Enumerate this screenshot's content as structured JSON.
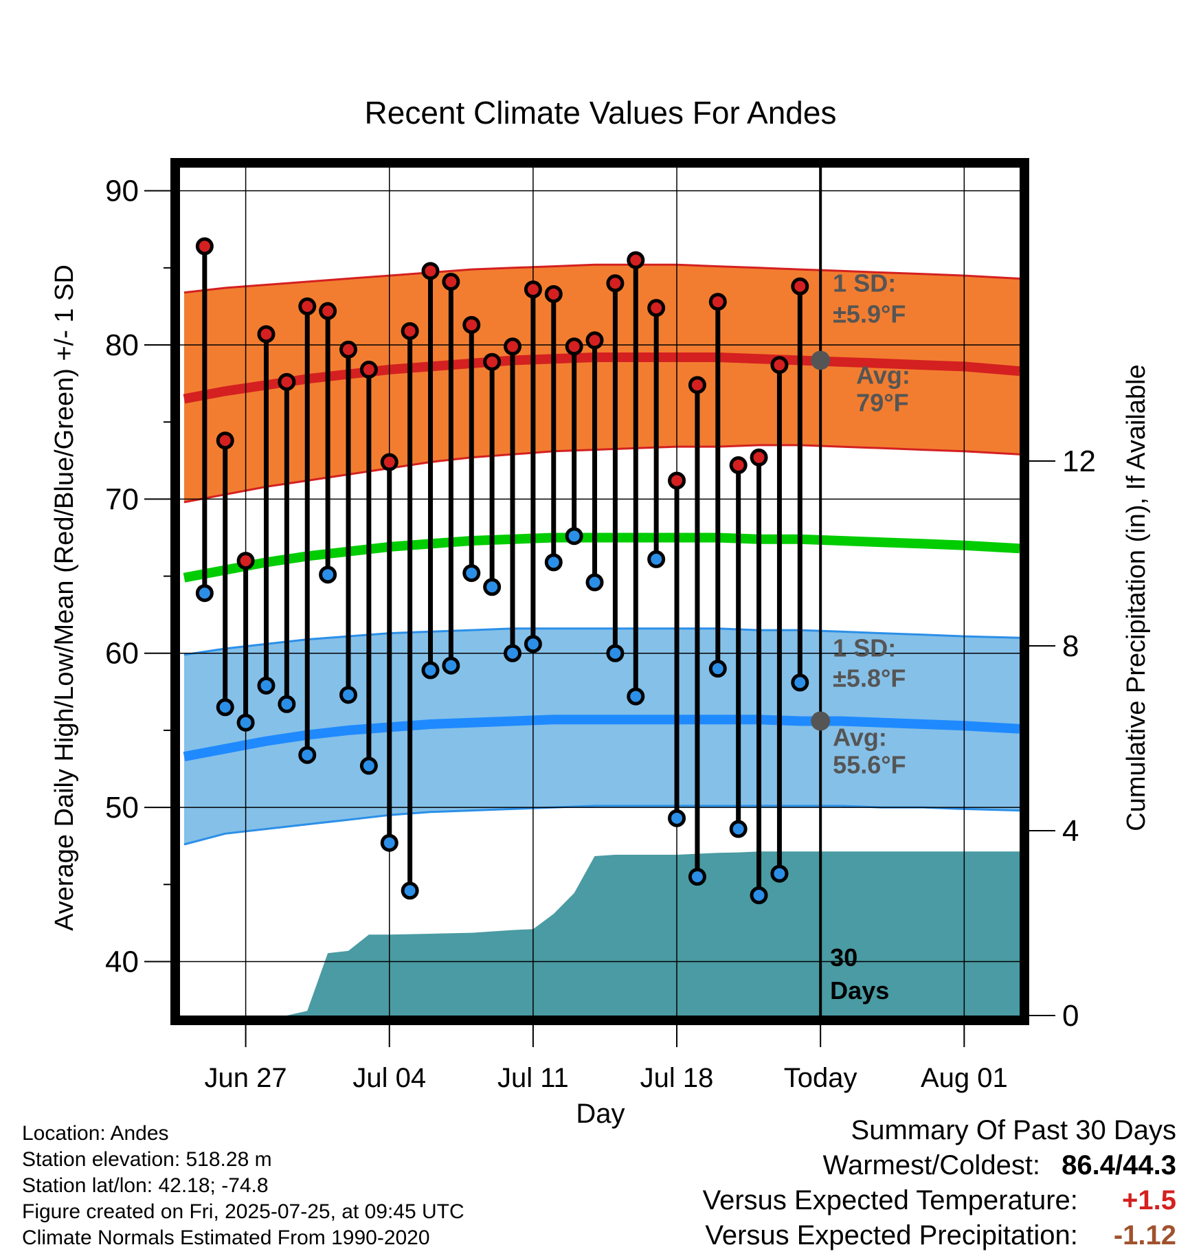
{
  "chart_data": {
    "type": "line",
    "title": "Recent Climate Values For Andes",
    "xlabel": "Day",
    "ylabel": "Average Daily High/Low/Mean (Red/Blue/Green) +/- 1 SD",
    "y2label": "Cumulative Precipitation (in), If Available",
    "ylim": [
      36.5,
      91.5
    ],
    "y_ticks": [
      40,
      50,
      60,
      70,
      80,
      90
    ],
    "y2lim": [
      0,
      18.35
    ],
    "y2_ticks": [
      0,
      4,
      8,
      12
    ],
    "x_tick_labels": [
      "Jun 27",
      "Jul 04",
      "Jul 11",
      "Jul 18",
      "Today",
      "Aug 01"
    ],
    "x_range_days": [
      -31.2,
      9.7
    ],
    "x_tick_days": [
      -28,
      -21,
      -14,
      -7,
      0,
      7
    ],
    "grid": true,
    "x_days": [
      -30,
      -29,
      -28,
      -27,
      -26,
      -25,
      -24,
      -23,
      -22,
      -21,
      -20,
      -19,
      -18,
      -17,
      -16,
      -15,
      -14,
      -13,
      -12,
      -11,
      -10,
      -9,
      -8,
      -7,
      -6,
      -5,
      -4,
      -3,
      -2,
      -1
    ],
    "series": [
      {
        "name": "Daily High",
        "color": "#d42020",
        "values": [
          86.4,
          73.8,
          66.0,
          80.7,
          77.6,
          82.5,
          82.2,
          79.7,
          78.4,
          72.4,
          80.9,
          84.8,
          84.1,
          81.3,
          78.9,
          79.9,
          83.6,
          83.3,
          79.9,
          80.3,
          84.0,
          85.5,
          82.4,
          71.2,
          77.4,
          82.8,
          72.2,
          72.7,
          78.7,
          83.8
        ]
      },
      {
        "name": "Daily Low",
        "color": "#2b8fe8",
        "values": [
          63.9,
          56.5,
          55.5,
          57.9,
          56.7,
          53.4,
          65.1,
          57.3,
          52.7,
          47.7,
          44.6,
          58.9,
          59.2,
          65.2,
          64.3,
          60.0,
          60.6,
          65.9,
          67.6,
          64.6,
          60.0,
          57.2,
          66.1,
          49.3,
          45.5,
          59.0,
          48.6,
          44.3,
          45.7,
          58.1
        ]
      }
    ],
    "normals": {
      "days": [
        -31,
        -29,
        -27,
        -25,
        -23,
        -21,
        -19,
        -17,
        -15,
        -13,
        -11,
        -9,
        -7,
        -5,
        -3,
        -1,
        1,
        3,
        5,
        7,
        9.7
      ],
      "high_mean": [
        76.5,
        77.0,
        77.4,
        77.8,
        78.1,
        78.4,
        78.6,
        78.8,
        79.0,
        79.1,
        79.2,
        79.2,
        79.2,
        79.2,
        79.1,
        79.0,
        78.9,
        78.8,
        78.7,
        78.6,
        78.3
      ],
      "high_upper": [
        83.4,
        83.7,
        83.9,
        84.1,
        84.3,
        84.5,
        84.7,
        84.9,
        85.0,
        85.1,
        85.2,
        85.2,
        85.2,
        85.1,
        85.0,
        84.9,
        84.8,
        84.7,
        84.6,
        84.5,
        84.3
      ],
      "high_lower": [
        69.8,
        70.3,
        70.8,
        71.2,
        71.6,
        72.0,
        72.4,
        72.7,
        72.9,
        73.1,
        73.2,
        73.3,
        73.4,
        73.4,
        73.5,
        73.5,
        73.4,
        73.3,
        73.2,
        73.1,
        72.9
      ],
      "mean": [
        64.9,
        65.4,
        65.9,
        66.3,
        66.6,
        66.9,
        67.1,
        67.3,
        67.4,
        67.5,
        67.5,
        67.5,
        67.5,
        67.5,
        67.4,
        67.4,
        67.3,
        67.2,
        67.1,
        67.0,
        66.8
      ],
      "low_mean": [
        53.3,
        53.8,
        54.3,
        54.7,
        55.0,
        55.2,
        55.4,
        55.5,
        55.6,
        55.7,
        55.7,
        55.7,
        55.7,
        55.7,
        55.7,
        55.6,
        55.6,
        55.5,
        55.4,
        55.3,
        55.1
      ],
      "low_upper": [
        59.9,
        60.3,
        60.6,
        60.9,
        61.1,
        61.3,
        61.4,
        61.5,
        61.6,
        61.6,
        61.6,
        61.6,
        61.6,
        61.6,
        61.5,
        61.5,
        61.4,
        61.3,
        61.2,
        61.1,
        61.0
      ],
      "low_lower": [
        47.6,
        48.3,
        48.6,
        48.9,
        49.2,
        49.5,
        49.7,
        49.8,
        49.9,
        50.0,
        50.1,
        50.1,
        50.1,
        50.1,
        50.1,
        50.1,
        50.1,
        50.0,
        50.0,
        49.9,
        49.8
      ]
    },
    "precip": {
      "name": "Cumulative Precipitation",
      "color": "#4a9ba3",
      "days": [
        -31.2,
        -26,
        -25,
        -24,
        -23,
        -22,
        -21,
        -20,
        -19,
        -18,
        -17,
        -16,
        -15,
        -14,
        -13,
        -12,
        -11,
        -10,
        -9,
        -8,
        -7,
        -6,
        -5,
        -4,
        -3,
        -2,
        -1,
        0,
        9.7
      ],
      "values": [
        0.0,
        0.0,
        0.1,
        1.35,
        1.4,
        1.75,
        1.75,
        1.76,
        1.77,
        1.78,
        1.79,
        1.82,
        1.85,
        1.87,
        2.2,
        2.65,
        3.45,
        3.48,
        3.48,
        3.48,
        3.48,
        3.5,
        3.52,
        3.53,
        3.55,
        3.55,
        3.55,
        3.55,
        3.55
      ]
    },
    "today_marker": {
      "high_avg": 79.0,
      "low_avg": 55.6,
      "high_sd_label": "1 SD:",
      "high_sd_value": "±5.9°F",
      "high_avg_label": "Avg:",
      "high_avg_value": "79°F",
      "low_sd_label": "1 SD:",
      "low_sd_value": "±5.8°F",
      "low_avg_label": "Avg:",
      "low_avg_value": "55.6°F",
      "period_number": "30",
      "period_unit": "Days"
    },
    "colors": {
      "high_band": "#f27d30",
      "high_band_edge": "#d42020",
      "high_mean": "#d42020",
      "mean": "#00cc00",
      "low_band": "#85c0e8",
      "low_band_edge": "#2b8fe8",
      "low_mean": "#1f8aff",
      "marker_label": "#555555"
    }
  },
  "location_info": {
    "location": "Location: Andes",
    "elevation": "Station elevation: 518.28 m",
    "latlon": "Station lat/lon: 42.18; -74.8",
    "created": "Figure created on Fri, 2025-07-25, at 09:45 UTC",
    "normals": "Climate Normals Estimated From 1990-2020"
  },
  "summary": {
    "title": "Summary Of Past 30 Days",
    "warm_cold_label": "Warmest/Coldest:",
    "warm_cold_value": "86.4/44.3",
    "temp_label": "Versus Expected Temperature:",
    "temp_value": "+1.5",
    "temp_color": "#d42020",
    "precip_label": "Versus Expected Precipitation:",
    "precip_value": "-1.12",
    "precip_color": "#a0522d"
  }
}
